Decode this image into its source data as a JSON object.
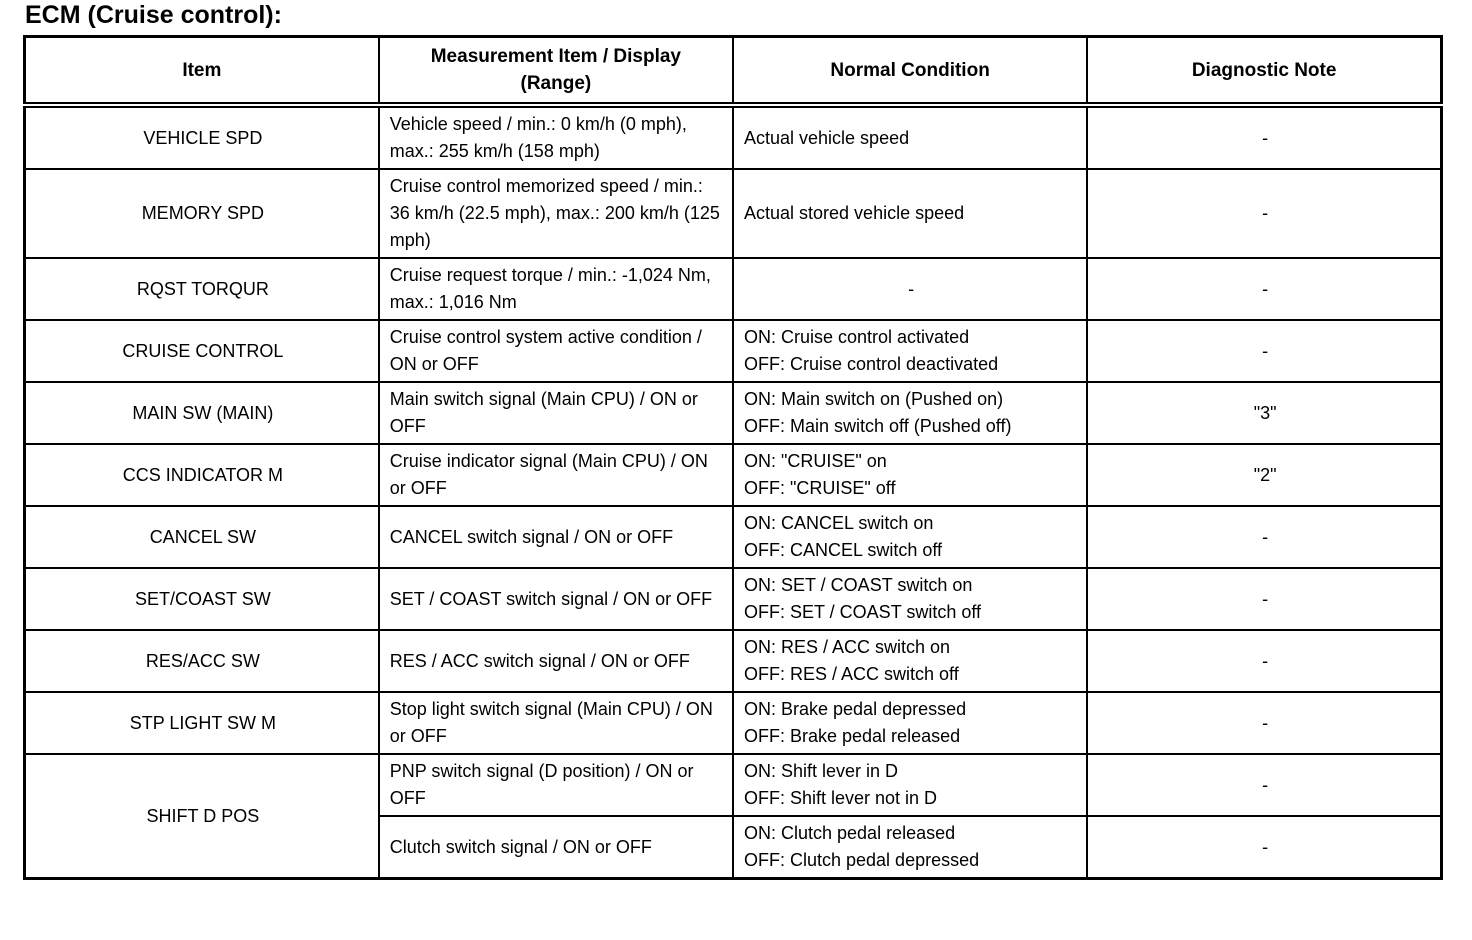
{
  "title": "ECM (Cruise control):",
  "table": {
    "headers": {
      "item": "Item",
      "measurement": "Measurement Item / Display\n(Range)",
      "condition": "Normal Condition",
      "note": "Diagnostic Note"
    },
    "rows": [
      {
        "item": "VEHICLE SPD",
        "measurement": "Vehicle speed / min.: 0 km/h (0 mph), max.: 255 km/h (158 mph)",
        "condition": "Actual vehicle speed",
        "note": "-"
      },
      {
        "item": "MEMORY SPD",
        "measurement": "Cruise control memorized speed / min.: 36 km/h (22.5 mph), max.: 200 km/h (125 mph)",
        "condition": "Actual stored vehicle speed",
        "note": "-"
      },
      {
        "item": "RQST TORQUR",
        "measurement": "Cruise request torque / min.: -1,024 Nm, max.: 1,016 Nm",
        "condition": "-",
        "note": "-"
      },
      {
        "item": "CRUISE CONTROL",
        "measurement": "Cruise control system active condition / ON or OFF",
        "condition": "ON: Cruise control activated\nOFF: Cruise control deactivated",
        "note": "-"
      },
      {
        "item": "MAIN SW (MAIN)",
        "measurement": "Main switch signal (Main CPU) / ON or OFF",
        "condition": "ON: Main switch on (Pushed on)\nOFF: Main switch off (Pushed off)",
        "note": "\"3\""
      },
      {
        "item": "CCS INDICATOR M",
        "measurement": "Cruise indicator signal (Main CPU) / ON or OFF",
        "condition": "ON: \"CRUISE\" on\nOFF: \"CRUISE\" off",
        "note": "\"2\""
      },
      {
        "item": "CANCEL SW",
        "measurement": "CANCEL switch signal / ON or OFF",
        "condition": "ON: CANCEL switch on\nOFF: CANCEL switch off",
        "note": "-"
      },
      {
        "item": "SET/COAST SW",
        "measurement": "SET / COAST switch signal / ON or OFF",
        "condition": "ON: SET / COAST switch on\nOFF: SET / COAST switch off",
        "note": "-"
      },
      {
        "item": "RES/ACC SW",
        "measurement": "RES / ACC switch signal / ON or OFF",
        "condition": "ON: RES / ACC switch on\nOFF: RES / ACC switch off",
        "note": "-"
      },
      {
        "item": "STP LIGHT SW M",
        "measurement": "Stop light switch signal (Main CPU) / ON or OFF",
        "condition": "ON: Brake pedal depressed\nOFF: Brake pedal released",
        "note": "-"
      },
      {
        "item": "SHIFT D POS",
        "measurement": "PNP switch signal (D position) / ON or OFF",
        "condition": "ON: Shift lever in D\nOFF: Shift lever not in D",
        "note": "-"
      },
      {
        "measurement": "Clutch switch signal / ON or OFF",
        "condition": "ON: Clutch pedal released\nOFF: Clutch pedal depressed",
        "note": "-"
      }
    ]
  }
}
